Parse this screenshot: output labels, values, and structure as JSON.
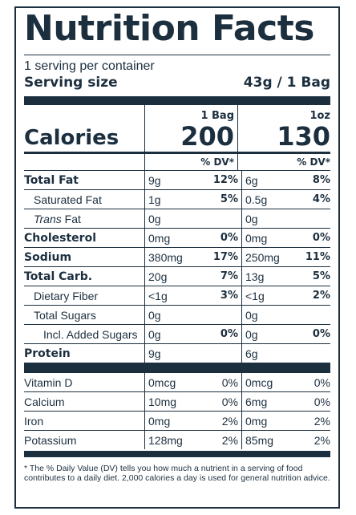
{
  "title": "Nutrition Facts",
  "servings_per_container": "1 serving per container",
  "serving_size": {
    "label": "Serving size",
    "value": "43g / 1 Bag"
  },
  "calories": {
    "label": "Calories",
    "col1_unit": "1 Bag",
    "col1_value": "200",
    "col2_unit": "1oz",
    "col2_value": "130"
  },
  "dv_header": "% DV*",
  "nutrients": [
    {
      "name": "Total Fat",
      "style": "bold",
      "v1": "9g",
      "d1": "12%",
      "v2": "6g",
      "d2": "8%"
    },
    {
      "name": "Saturated Fat",
      "style": "ind1",
      "v1": "1g",
      "d1": "5%",
      "v2": "0.5g",
      "d2": "4%"
    },
    {
      "name_italic": "Trans",
      "name": " Fat",
      "style": "ind1",
      "v1": "0g",
      "d1": "",
      "v2": "0g",
      "d2": ""
    },
    {
      "name": "Cholesterol",
      "style": "bold",
      "v1": "0mg",
      "d1": "0%",
      "v2": "0mg",
      "d2": "0%"
    },
    {
      "name": "Sodium",
      "style": "bold",
      "v1": "380mg",
      "d1": "17%",
      "v2": "250mg",
      "d2": "11%"
    },
    {
      "name": "Total Carb.",
      "style": "bold",
      "v1": "20g",
      "d1": "7%",
      "v2": "13g",
      "d2": "5%"
    },
    {
      "name": "Dietary Fiber",
      "style": "ind1",
      "v1": "<1g",
      "d1": "3%",
      "v2": "<1g",
      "d2": "2%"
    },
    {
      "name": "Total Sugars",
      "style": "ind1",
      "v1": "0g",
      "d1": "",
      "v2": "0g",
      "d2": ""
    },
    {
      "name": "Incl. Added Sugars",
      "style": "ind2",
      "v1": "0g",
      "d1": "0%",
      "v2": "0g",
      "d2": "0%"
    },
    {
      "name": "Protein",
      "style": "bold",
      "v1": "9g",
      "d1": "",
      "v2": "6g",
      "d2": ""
    }
  ],
  "vitamins": [
    {
      "name": "Vitamin D",
      "v1": "0mcg",
      "d1": "0%",
      "v2": "0mcg",
      "d2": "0%"
    },
    {
      "name": "Calcium",
      "v1": "10mg",
      "d1": "0%",
      "v2": "6mg",
      "d2": "0%"
    },
    {
      "name": "Iron",
      "v1": "0mg",
      "d1": "2%",
      "v2": "0mg",
      "d2": "2%"
    },
    {
      "name": "Potassium",
      "v1": "128mg",
      "d1": "2%",
      "v2": "85mg",
      "d2": "2%"
    }
  ],
  "footnote": "* The % Daily Value (DV) tells you how much a nutrient in a serving of food contributes to a daily diet. 2,000 calories a day is used for general nutrition advice.",
  "colors": {
    "ink": "#1c2f3f",
    "background": "#ffffff"
  }
}
